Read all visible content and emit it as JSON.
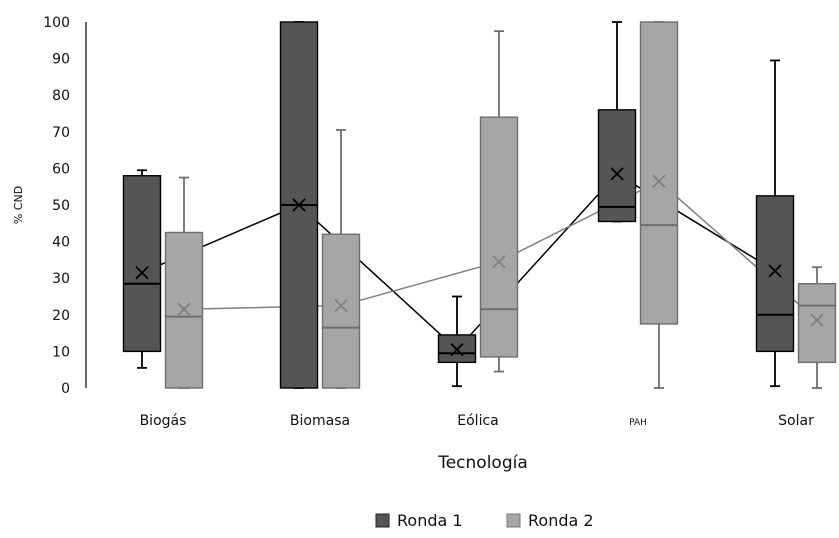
{
  "chart_data": {
    "type": "box",
    "xlabel": "Tecnología",
    "ylabel": "% CND",
    "ylim": [
      0,
      100
    ],
    "yticks": [
      0,
      10,
      20,
      30,
      40,
      50,
      60,
      70,
      80,
      90,
      100
    ],
    "categories": [
      "Biogás",
      "Biomasa",
      "Eólica",
      "PAH",
      "Solar"
    ],
    "grid": false,
    "legend_position": "bottom",
    "series": [
      {
        "name": "Ronda 1",
        "color": "#555555",
        "mean_line_color": "#000000",
        "boxes": [
          {
            "min": 5.5,
            "q1": 10,
            "median": 28.5,
            "q3": 58,
            "max": 59.5,
            "mean": 31.5
          },
          {
            "min": 0,
            "q1": 0,
            "median": 50,
            "q3": 100,
            "max": 100,
            "mean": 50
          },
          {
            "min": 0.5,
            "q1": 7,
            "median": 9.5,
            "q3": 14.5,
            "max": 25,
            "mean": 10.5
          },
          {
            "min": 45.5,
            "q1": 45.5,
            "median": 49.5,
            "q3": 76,
            "max": 100,
            "mean": 58.5
          },
          {
            "min": 0.5,
            "q1": 10,
            "median": 20,
            "q3": 52.5,
            "max": 89.5,
            "mean": 32
          }
        ]
      },
      {
        "name": "Ronda 2",
        "color": "#a6a6a6",
        "mean_line_color": "#808080",
        "boxes": [
          {
            "min": 0,
            "q1": 0,
            "median": 19.5,
            "q3": 42.5,
            "max": 57.5,
            "mean": 21.5
          },
          {
            "min": 0,
            "q1": 0,
            "median": 16.5,
            "q3": 42,
            "max": 70.5,
            "mean": 22.5
          },
          {
            "min": 4.5,
            "q1": 8.5,
            "median": 21.5,
            "q3": 74,
            "max": 97.5,
            "mean": 34.5
          },
          {
            "min": 0,
            "q1": 17.5,
            "median": 44.5,
            "q3": 100,
            "max": 100,
            "mean": 56.5
          },
          {
            "min": 0,
            "q1": 7,
            "median": 22.5,
            "q3": 28.5,
            "max": 33,
            "mean": 18.5
          }
        ]
      }
    ]
  }
}
